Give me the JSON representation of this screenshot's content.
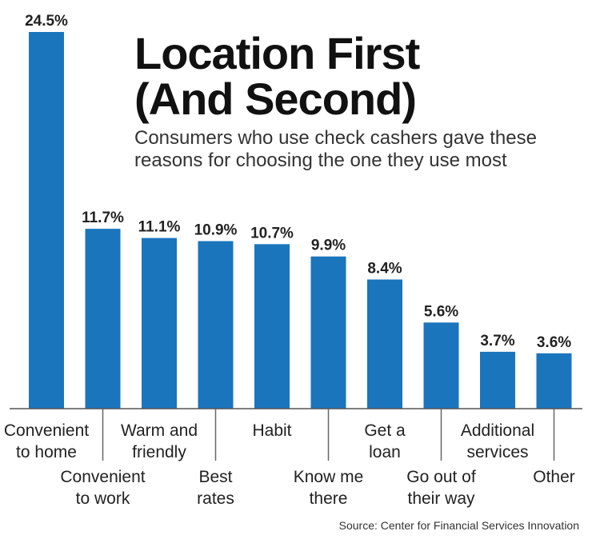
{
  "chart_data": {
    "type": "bar",
    "title": [
      "Location First",
      "(And Second)"
    ],
    "subtitle": [
      "Consumers who use check cashers gave these",
      "reasons for choosing the one they use most"
    ],
    "categories": [
      [
        "Convenient",
        "to home"
      ],
      [
        "Convenient",
        "to work"
      ],
      [
        "Warm and",
        "friendly"
      ],
      [
        "Best",
        "rates"
      ],
      [
        "Habit"
      ],
      [
        "Know me",
        "there"
      ],
      [
        "Get a",
        "loan"
      ],
      [
        "Go out of",
        "their way"
      ],
      [
        "Additional",
        "services"
      ],
      [
        "Other"
      ]
    ],
    "values": [
      24.5,
      11.7,
      11.1,
      10.9,
      10.7,
      9.9,
      8.4,
      5.6,
      3.7,
      3.6
    ],
    "value_labels": [
      "24.5%",
      "11.7%",
      "11.1%",
      "10.9%",
      "10.7%",
      "9.9%",
      "8.4%",
      "5.6%",
      "3.7%",
      "3.6%"
    ],
    "xlabel": "",
    "ylabel": "",
    "ylim": [
      0,
      24.5
    ],
    "grid": false,
    "bar_color": "#1a75bc",
    "source": "Source: Center for Financial Services Innovation"
  }
}
